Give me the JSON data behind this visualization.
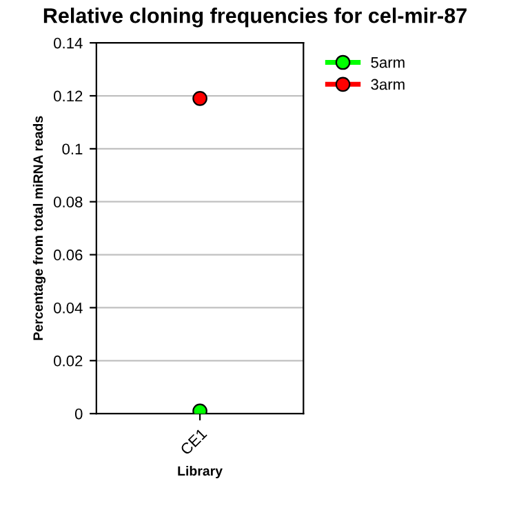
{
  "chart_data": {
    "type": "line",
    "title": "Relative cloning frequencies for cel-mir-87",
    "xlabel": "Library",
    "ylabel": "Percentage from total miRNA reads",
    "categories": [
      "CE1"
    ],
    "series": [
      {
        "name": "5arm",
        "color": "#00ff00",
        "values": [
          0.001
        ]
      },
      {
        "name": "3arm",
        "color": "#ff0000",
        "values": [
          0.119
        ]
      }
    ],
    "ylim": [
      0,
      0.14
    ],
    "yticks": [
      0,
      0.02,
      0.04,
      0.06,
      0.08,
      0.1,
      0.12,
      0.14
    ],
    "grid": "y",
    "legend": "top right",
    "marker": "circle",
    "line_style": "solid"
  }
}
